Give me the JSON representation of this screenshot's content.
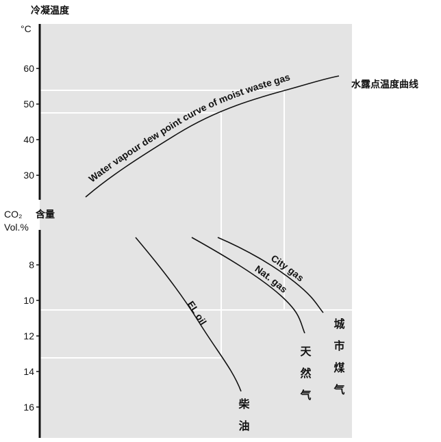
{
  "chart_data": {
    "type": "line",
    "title": "冷凝温度",
    "y_unit": "°C",
    "ylim": [
      23.5,
      72.5
    ],
    "yticks": [
      30,
      40,
      50,
      60
    ],
    "y2_title": "含量",
    "y2_label": [
      "CO₂",
      "Vol.%"
    ],
    "y2lim": [
      6.3,
      17.7
    ],
    "y2ticks": [
      8,
      10,
      12,
      14,
      16
    ],
    "y2_direction": "down",
    "curves": [
      {
        "label": "Water vapour dew point curve of moist waste gas",
        "name": "水露点温度曲线"
      },
      {
        "label": "EL oil",
        "name": "柴油"
      },
      {
        "label": "Nat. gas",
        "name": "天然气"
      },
      {
        "label": "City gas",
        "name": "城市煤气"
      }
    ]
  }
}
